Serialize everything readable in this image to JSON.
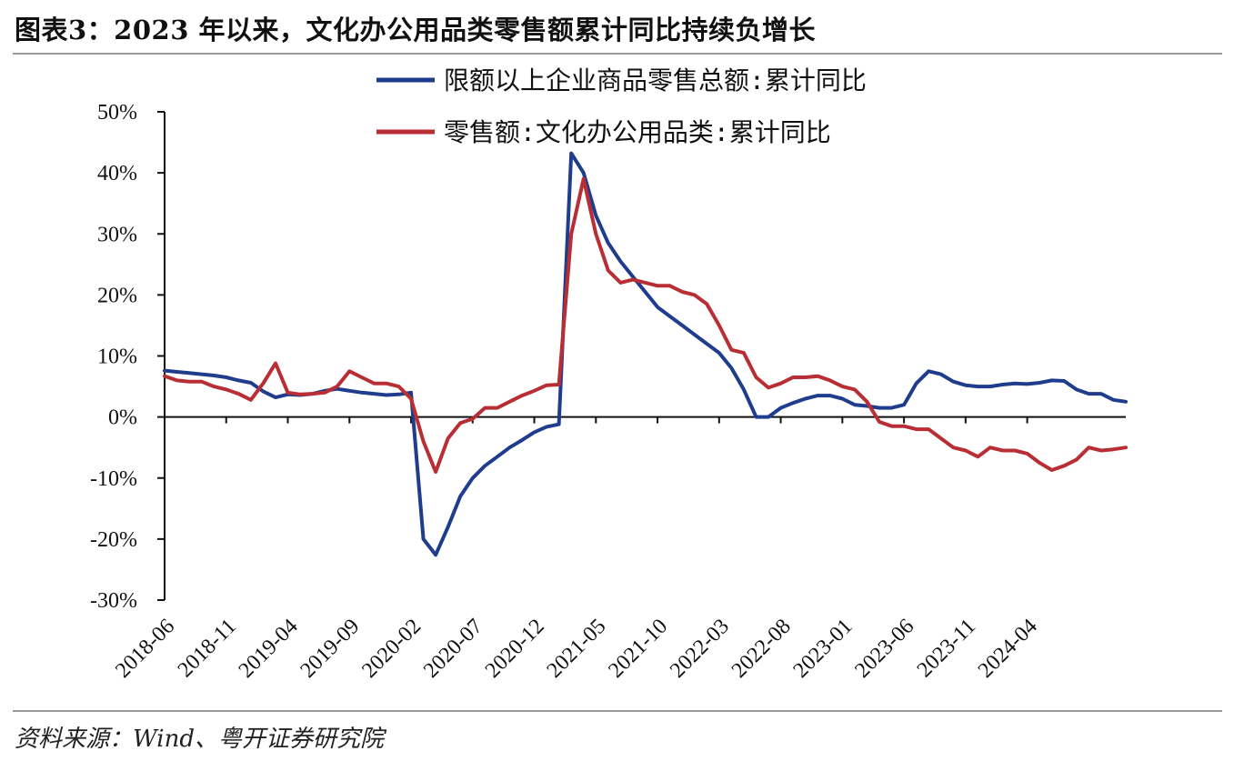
{
  "header": {
    "title": "图表3：2023 年以来，文化办公用品类零售额累计同比持续负增长"
  },
  "footer": {
    "source": "资料来源：Wind、粤开证券研究院"
  },
  "chart_data": {
    "type": "line",
    "title": "图表3：2023 年以来，文化办公用品类零售额累计同比持续负增长",
    "xlabel": "",
    "ylabel": "",
    "ylim": [
      -30,
      50
    ],
    "yticks": [
      -30,
      -20,
      -10,
      0,
      10,
      20,
      30,
      40,
      50
    ],
    "ytick_labels": [
      "-30%",
      "-20%",
      "-10%",
      "0%",
      "10%",
      "20%",
      "30%",
      "40%",
      "50%"
    ],
    "xtick_labels": [
      "2018-06",
      "2018-11",
      "2019-04",
      "2019-09",
      "2020-02",
      "2020-07",
      "2020-12",
      "2021-05",
      "2021-10",
      "2022-03",
      "2022-08",
      "2023-01",
      "2023-06",
      "2023-11",
      "2024-04"
    ],
    "legend_position": "top",
    "x_start": "2018-06",
    "x_end": "2024-08",
    "series": [
      {
        "name": "限额以上企业商品零售总额:累计同比",
        "color": "#1f3d8c",
        "values": [
          7.6,
          7.4,
          7.2,
          7.0,
          6.8,
          6.5,
          6.0,
          5.6,
          4.2,
          3.2,
          3.7,
          3.6,
          3.8,
          4.3,
          4.6,
          4.3,
          4.0,
          3.8,
          3.6,
          3.7,
          4.0,
          -20.0,
          -22.6,
          -18.0,
          -13.0,
          -10.0,
          -8.0,
          -6.5,
          -5.0,
          -3.8,
          -2.5,
          -1.6,
          -1.2,
          43.2,
          40.0,
          33.0,
          28.5,
          25.5,
          23.0,
          20.5,
          18.0,
          16.5,
          15.0,
          13.5,
          12.0,
          10.5,
          8.0,
          4.5,
          0.0,
          0.0,
          1.5,
          2.3,
          3.0,
          3.5,
          3.5,
          3.0,
          2.0,
          1.8,
          1.5,
          1.5,
          2.0,
          5.5,
          7.5,
          7.0,
          5.8,
          5.2,
          5.0,
          5.0,
          5.3,
          5.5,
          5.4,
          5.6,
          6.0,
          5.9,
          4.5,
          3.8,
          3.8,
          2.8,
          2.5
        ]
      },
      {
        "name": "零售额:文化办公用品类:累计同比",
        "color": "#b92e34",
        "values": [
          6.7,
          6.0,
          5.8,
          5.8,
          5.0,
          4.5,
          3.8,
          2.8,
          5.5,
          8.8,
          4.0,
          3.7,
          3.8,
          4.0,
          5.0,
          7.5,
          6.5,
          5.5,
          5.5,
          5.0,
          3.0,
          -4.0,
          -9.0,
          -3.5,
          -1.0,
          -0.3,
          1.5,
          1.5,
          2.5,
          3.5,
          4.3,
          5.2,
          5.3,
          30.0,
          39.0,
          30.0,
          24.0,
          22.0,
          22.5,
          22.0,
          21.5,
          21.5,
          20.5,
          20.0,
          18.5,
          15.0,
          11.0,
          10.5,
          6.5,
          4.8,
          5.5,
          6.5,
          6.5,
          6.7,
          6.0,
          5.0,
          4.5,
          2.5,
          -0.8,
          -1.5,
          -1.5,
          -2.0,
          -2.0,
          -3.5,
          -5.0,
          -5.5,
          -6.5,
          -5.0,
          -5.5,
          -5.5,
          -6.0,
          -7.5,
          -8.7,
          -8.0,
          -7.0,
          -5.0,
          -5.5,
          -5.3,
          -5.0
        ]
      }
    ]
  }
}
